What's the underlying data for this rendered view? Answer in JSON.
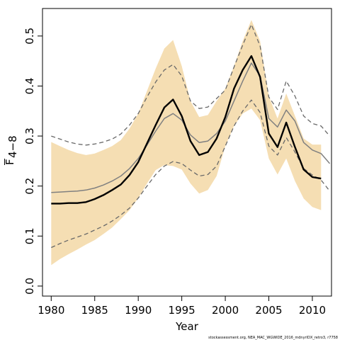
{
  "chart_data": {
    "type": "line",
    "xlabel": "Year",
    "ylabel_main": "F",
    "ylabel_sub": "4−8",
    "xlim": [
      1979,
      2012.2
    ],
    "ylim": [
      -0.02,
      0.555
    ],
    "x_ticks": [
      1980,
      1985,
      1990,
      1995,
      2000,
      2005,
      2010
    ],
    "y_ticks": [
      0.0,
      0.1,
      0.2,
      0.3,
      0.4,
      0.5
    ],
    "y_tick_labels": [
      "0.0",
      "0.1",
      "0.2",
      "0.3",
      "0.4",
      "0.5"
    ],
    "footnote": "stockassessment.org, NEA_MAC_WGWIDE_2016_mdnyrIDX_retro3, r7758",
    "colors": {
      "band": "#f5deb3",
      "estimate": "#000000",
      "reference_line": "#808080",
      "reference_dashed": "#696969"
    },
    "series": [
      {
        "role": "confidence-band",
        "x": [
          1980,
          1981,
          1982,
          1983,
          1984,
          1985,
          1986,
          1987,
          1988,
          1989,
          1990,
          1991,
          1992,
          1993,
          1994,
          1995,
          1996,
          1997,
          1998,
          1999,
          2000,
          2001,
          2002,
          2003,
          2004,
          2005,
          2006,
          2007,
          2008,
          2009,
          2010,
          2011
        ],
        "upper": [
          0.288,
          0.28,
          0.272,
          0.266,
          0.262,
          0.265,
          0.272,
          0.28,
          0.292,
          0.315,
          0.345,
          0.39,
          0.435,
          0.475,
          0.492,
          0.44,
          0.37,
          0.338,
          0.342,
          0.37,
          0.395,
          0.44,
          0.49,
          0.532,
          0.49,
          0.38,
          0.335,
          0.385,
          0.34,
          0.295,
          0.283,
          0.283
        ],
        "lower": [
          0.042,
          0.054,
          0.064,
          0.073,
          0.083,
          0.092,
          0.104,
          0.117,
          0.134,
          0.152,
          0.176,
          0.205,
          0.232,
          0.242,
          0.24,
          0.233,
          0.205,
          0.185,
          0.192,
          0.22,
          0.28,
          0.32,
          0.345,
          0.355,
          0.332,
          0.255,
          0.223,
          0.255,
          0.21,
          0.175,
          0.158,
          0.152
        ]
      },
      {
        "role": "estimate",
        "x": [
          1980,
          1981,
          1982,
          1983,
          1984,
          1985,
          1986,
          1987,
          1988,
          1989,
          1990,
          1991,
          1992,
          1993,
          1994,
          1995,
          1996,
          1997,
          1998,
          1999,
          2000,
          2001,
          2002,
          2003,
          2004,
          2005,
          2006,
          2007,
          2008,
          2009,
          2010,
          2011
        ],
        "y": [
          0.165,
          0.165,
          0.166,
          0.166,
          0.168,
          0.174,
          0.182,
          0.192,
          0.203,
          0.222,
          0.248,
          0.285,
          0.322,
          0.357,
          0.373,
          0.34,
          0.29,
          0.262,
          0.268,
          0.295,
          0.338,
          0.395,
          0.432,
          0.46,
          0.418,
          0.305,
          0.278,
          0.327,
          0.278,
          0.233,
          0.218,
          0.215
        ]
      },
      {
        "role": "reference-estimate",
        "x": [
          1980,
          1981,
          1982,
          1983,
          1984,
          1985,
          1986,
          1987,
          1988,
          1989,
          1990,
          1991,
          1992,
          1993,
          1994,
          1995,
          1996,
          1997,
          1998,
          1999,
          2000,
          2001,
          2002,
          2003,
          2004,
          2005,
          2006,
          2007,
          2008,
          2009,
          2010,
          2011,
          2012
        ],
        "y": [
          0.187,
          0.188,
          0.189,
          0.19,
          0.192,
          0.196,
          0.202,
          0.21,
          0.22,
          0.235,
          0.255,
          0.282,
          0.31,
          0.335,
          0.345,
          0.332,
          0.302,
          0.287,
          0.29,
          0.305,
          0.33,
          0.37,
          0.41,
          0.446,
          0.42,
          0.335,
          0.318,
          0.352,
          0.33,
          0.287,
          0.272,
          0.265,
          0.245
        ]
      },
      {
        "role": "reference-upper",
        "x": [
          1980,
          1981,
          1982,
          1983,
          1984,
          1985,
          1986,
          1987,
          1988,
          1989,
          1990,
          1991,
          1992,
          1993,
          1994,
          1995,
          1996,
          1997,
          1998,
          1999,
          2000,
          2001,
          2002,
          2003,
          2004,
          2005,
          2006,
          2007,
          2008,
          2009,
          2010,
          2011,
          2012
        ],
        "y": [
          0.3,
          0.294,
          0.288,
          0.284,
          0.282,
          0.284,
          0.288,
          0.294,
          0.304,
          0.322,
          0.345,
          0.378,
          0.408,
          0.432,
          0.443,
          0.42,
          0.37,
          0.355,
          0.358,
          0.375,
          0.392,
          0.438,
          0.482,
          0.523,
          0.48,
          0.378,
          0.353,
          0.41,
          0.38,
          0.34,
          0.325,
          0.32,
          0.3
        ]
      },
      {
        "role": "reference-lower",
        "x": [
          1980,
          1981,
          1982,
          1983,
          1984,
          1985,
          1986,
          1987,
          1988,
          1989,
          1990,
          1991,
          1992,
          1993,
          1994,
          1995,
          1996,
          1997,
          1998,
          1999,
          2000,
          2001,
          2002,
          2003,
          2004,
          2005,
          2006,
          2007,
          2008,
          2009,
          2010,
          2011,
          2012
        ],
        "y": [
          0.077,
          0.085,
          0.092,
          0.098,
          0.104,
          0.112,
          0.12,
          0.13,
          0.142,
          0.156,
          0.176,
          0.2,
          0.223,
          0.24,
          0.249,
          0.245,
          0.232,
          0.22,
          0.223,
          0.24,
          0.28,
          0.32,
          0.35,
          0.372,
          0.347,
          0.28,
          0.262,
          0.297,
          0.268,
          0.235,
          0.222,
          0.212,
          0.19
        ]
      }
    ]
  }
}
